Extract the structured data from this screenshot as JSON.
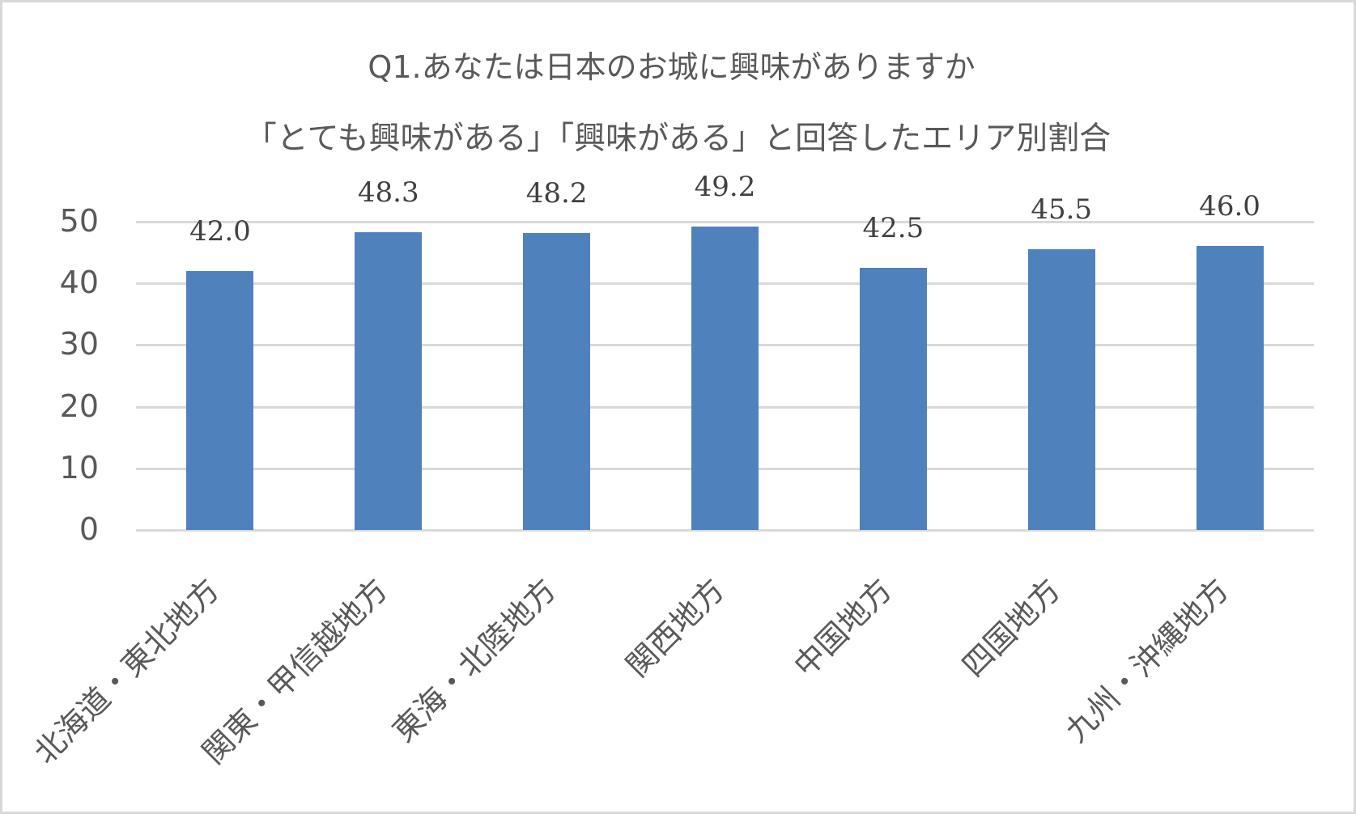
{
  "chart_data": {
    "type": "bar",
    "title": "Q1.あなたは日本のお城に興味がありますか",
    "subtitle": "「とても興味がある」「興味がある」と回答したエリア別割合",
    "categories": [
      "北海道・東北地方",
      "関東・甲信越地方",
      "東海・北陸地方",
      "関西地方",
      "中国地方",
      "四国地方",
      "九州・沖縄地方"
    ],
    "values": [
      42.0,
      48.3,
      48.2,
      49.2,
      42.5,
      45.5,
      46.0
    ],
    "value_labels": [
      "42.0",
      "48.3",
      "48.2",
      "49.2",
      "42.5",
      "45.5",
      "46.0"
    ],
    "xlabel": "",
    "ylabel": "",
    "ylim": [
      0,
      50
    ],
    "yticks": [
      "0",
      "10",
      "20",
      "30",
      "40",
      "50"
    ],
    "grid": true,
    "legend": "none",
    "bar_color": "#4f81bd",
    "grid_color": "#d9d9d9",
    "text_color": "#595959"
  }
}
